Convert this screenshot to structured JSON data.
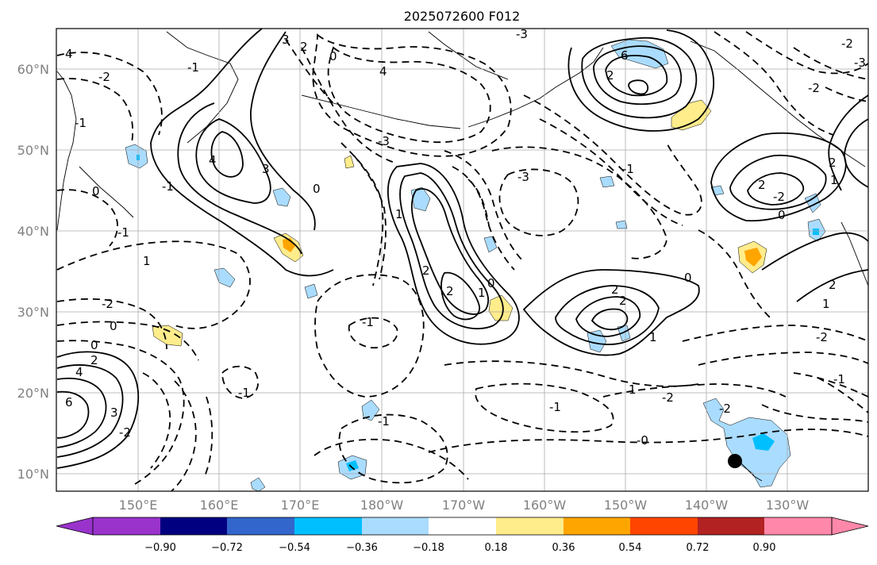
{
  "title": "2025072600 F012",
  "map": {
    "lat_labels": [
      "60°N",
      "50°N",
      "40°N",
      "30°N",
      "20°N",
      "10°N"
    ],
    "lon_labels": [
      "150°E",
      "160°E",
      "170°E",
      "180°W",
      "170°W",
      "160°W",
      "150°W",
      "140°W",
      "130°W"
    ],
    "contour_labels": [
      "3",
      "2",
      "0",
      "4",
      "-3",
      "-2",
      "-1",
      "6",
      "4",
      "3",
      "-3",
      "-1",
      "2",
      "0",
      "-2",
      "-1",
      "2",
      "1",
      "0",
      "2",
      "2",
      "1",
      "0",
      "-1",
      "-2",
      "0",
      "-2",
      "-1",
      "-1",
      "1",
      "-1",
      "-2",
      "-3",
      "4",
      "2",
      "0",
      "6",
      "3",
      "4",
      "0",
      "1",
      "-2",
      "2",
      "-1",
      "1",
      "-0",
      "-2",
      "0",
      "2",
      "1",
      "-2",
      "-1",
      "-3",
      "2",
      "2",
      "1",
      "-1",
      "-2"
    ],
    "point_marker": "black dot near Hawaii",
    "colors": {
      "contour": "#000000",
      "land_outline": "#000000",
      "grid": "#aaaaaa"
    }
  },
  "colorbar": {
    "tick_labels": [
      "−0.90",
      "−0.72",
      "−0.54",
      "−0.36",
      "−0.18",
      "0.18",
      "0.36",
      "0.54",
      "0.72",
      "0.90"
    ],
    "colors": [
      "#9933cc",
      "#000080",
      "#3366cc",
      "#00bfff",
      "#aadcff",
      "#ffffff",
      "#ffec8b",
      "#ffa500",
      "#ff4500",
      "#b22222",
      "#ff88aa"
    ]
  }
}
